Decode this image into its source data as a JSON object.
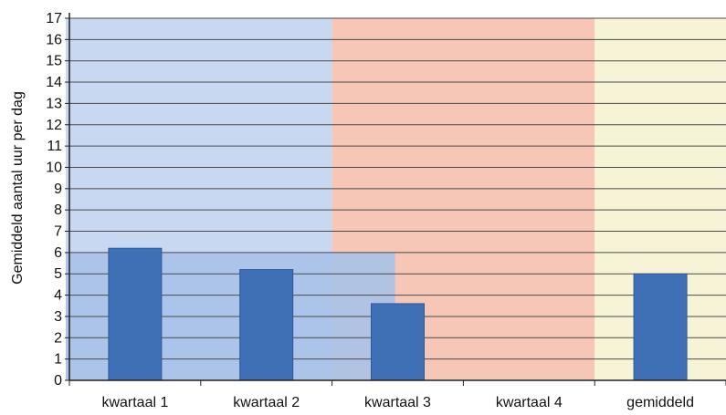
{
  "colors": {
    "bar": "#3f6fb5",
    "bar_edge": "#2f5a9a",
    "band_blue": "#c9d8f1",
    "band_blue_light": "#a9c2e8",
    "band_orange": "#f6c7b6",
    "band_yellow": "#f7f3d6",
    "gridline": "#4a4a4a",
    "axis": "#222222"
  },
  "chart_data": {
    "type": "bar",
    "title": "",
    "xlabel": "",
    "ylabel": "Gemiddeld aantal uur per dag",
    "ylim": [
      0,
      17
    ],
    "yticks": [
      0,
      1,
      2,
      3,
      4,
      5,
      6,
      7,
      8,
      9,
      10,
      11,
      12,
      13,
      14,
      15,
      16,
      17
    ],
    "grid": true,
    "categories": [
      "kwartaal 1",
      "kwartaal 2",
      "kwartaal 3",
      "kwartaal 4",
      "gemiddeld"
    ],
    "values": [
      6.2,
      5.2,
      3.6,
      null,
      5.0
    ],
    "background_bands": [
      {
        "from_category": "kwartaal 1",
        "to_category": "kwartaal 2",
        "color": "band_blue"
      },
      {
        "from_category": "kwartaal 3",
        "to_category": "kwartaal 4",
        "color": "band_orange"
      },
      {
        "from_category": "gemiddeld",
        "to_category": "gemiddeld",
        "color": "band_yellow"
      }
    ],
    "highlight_region": {
      "y_from": 0,
      "y_to": 6,
      "from_category": "kwartaal 1",
      "to_category": "kwartaal 2"
    }
  }
}
